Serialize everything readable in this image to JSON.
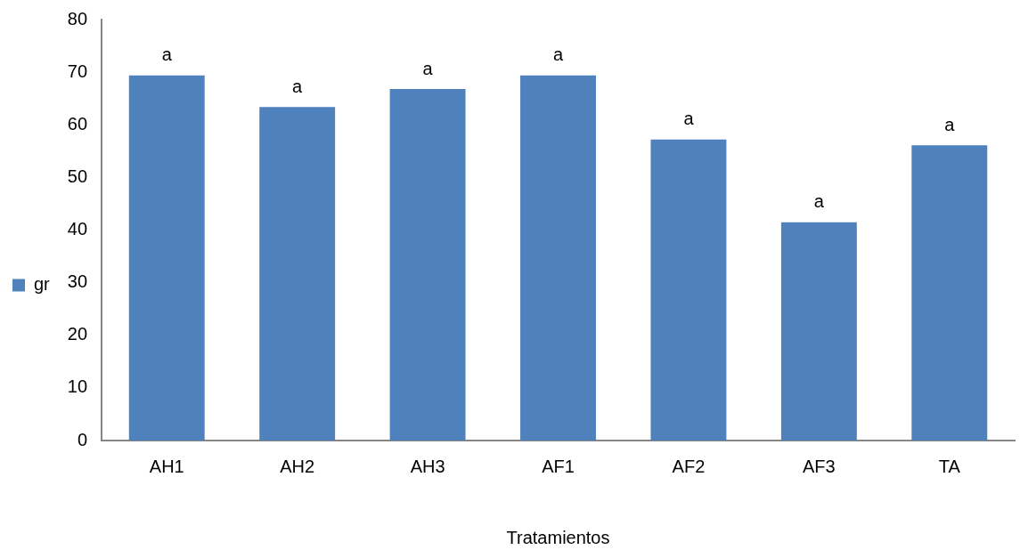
{
  "chart_data": {
    "type": "bar",
    "xlabel": "Tratamientos",
    "categories": [
      "AH1",
      "AH2",
      "AH3",
      "AF1",
      "AF2",
      "AF3",
      "TA"
    ],
    "series": [
      {
        "name": "gr",
        "color": "#4f81bd",
        "values": [
          69.4,
          63.4,
          66.8,
          69.4,
          57.2,
          41.5,
          56.1
        ]
      }
    ],
    "ylim": [
      0,
      80
    ],
    "yticks": [
      0,
      10,
      20,
      30,
      40,
      50,
      60,
      70,
      80
    ],
    "grid": false,
    "legend": "left",
    "annotations": [
      {
        "text": "a",
        "x": "AH1",
        "y": 69.4
      },
      {
        "text": "a",
        "x": "AH2",
        "y": 63.4
      },
      {
        "text": "a",
        "x": "AH3",
        "y": 66.8
      },
      {
        "text": "a",
        "x": "AF1",
        "y": 69.4
      },
      {
        "text": "a",
        "x": "AF2",
        "y": 57.2
      },
      {
        "text": "a",
        "x": "AF3",
        "y": 41.5
      },
      {
        "text": "a",
        "x": "TA",
        "y": 56.1
      }
    ]
  }
}
